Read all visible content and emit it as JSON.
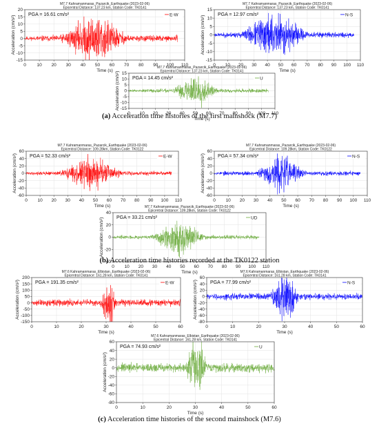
{
  "captions": [
    {
      "letter": "(a)",
      "text": "Acceleration time histories of the first mainshock (M7.7)"
    },
    {
      "letter": "(b)",
      "text": "Acceleration time histories recorded at the TK0122 station"
    },
    {
      "letter": "(c)",
      "text": "Acceleration time histories of the second mainshock (M7.6)"
    }
  ],
  "chart_data": [
    {
      "id": "a1",
      "type": "line",
      "title": "M7.7 Kahramanmaras_Pazarcik_Earthquake (2023-02-06)",
      "subtitle": "Epicentral Distance: 137.23 km, Station Code: TK0141",
      "xlabel": "Time (s)",
      "ylabel": "Acceleration (cm/s²)",
      "pga": "PGA = 16.61 cm/s²",
      "legend": "E-W",
      "legend_position": "top-right",
      "color": "#ff0000",
      "xlim": [
        0,
        110
      ],
      "ylim": [
        -15,
        20
      ],
      "xticks": [
        0,
        10,
        20,
        30,
        40,
        50,
        60,
        70,
        80,
        90,
        100,
        110
      ],
      "yticks": [
        -15,
        -10,
        -5,
        0,
        5,
        10,
        15,
        20
      ],
      "grid": true,
      "duration": 105,
      "peak": 16.61,
      "center": 48,
      "spread": 17,
      "onset": 8,
      "seed": 11
    },
    {
      "id": "a2",
      "type": "line",
      "title": "M7.7 Kahramanmaras_Pazarcik_Earthquake (2023-02-06)",
      "subtitle": "Epicentral Distance: 137.23 km, Station Code: TK0141",
      "xlabel": "Time (s)",
      "ylabel": "Acceleration (cm/s²)",
      "pga": "PGA = 12.97 cm/s²",
      "legend": "N-S",
      "legend_position": "top-right",
      "color": "#0000ff",
      "xlim": [
        0,
        110
      ],
      "ylim": [
        -15,
        15
      ],
      "xticks": [
        0,
        10,
        20,
        30,
        40,
        50,
        60,
        70,
        80,
        90,
        100,
        110
      ],
      "yticks": [
        -15,
        -10,
        -5,
        0,
        5,
        10,
        15
      ],
      "grid": true,
      "duration": 105,
      "peak": 12.97,
      "center": 45,
      "spread": 18,
      "onset": 8,
      "seed": 23
    },
    {
      "id": "a3",
      "type": "line",
      "title": "M7.7 Kahramanmaras_Pazarcik_Earthquake (2023-02-06)",
      "subtitle": "Epicentral Distance: 137.23 km, Station Code: TK0141",
      "xlabel": "Time (s)",
      "ylabel": "Acceleration (cm/s²)",
      "pga": "PGA = 14.45 cm/s²",
      "legend": "U",
      "legend_position": "top-right",
      "color": "#6aaa3a",
      "xlim": [
        0,
        110
      ],
      "ylim": [
        -15,
        15
      ],
      "xticks": [
        0,
        10,
        20,
        30,
        40,
        50,
        60,
        70,
        80,
        90,
        100,
        110
      ],
      "yticks": [
        -15,
        -10,
        -5,
        0,
        5,
        10,
        15
      ],
      "grid": true,
      "duration": 105,
      "peak": 14.45,
      "center": 50,
      "spread": 12,
      "onset": 10,
      "seed": 37
    },
    {
      "id": "b1",
      "type": "line",
      "title": "M7.7 Kahramanmaras_Pazarcik_Earthquake (2023-02-06)",
      "subtitle": "Epicentral Distance: 109.28km, Station Code: TK0122",
      "xlabel": "Time (s)",
      "ylabel": "Acceleration (cm/s²)",
      "pga": "PGA = 52.33 cm/s²",
      "legend": "E-W",
      "legend_position": "top-right",
      "color": "#ff0000",
      "xlim": [
        0,
        110
      ],
      "ylim": [
        -60,
        60
      ],
      "xticks": [
        0,
        10,
        20,
        30,
        40,
        50,
        60,
        70,
        80,
        90,
        100,
        110
      ],
      "yticks": [
        -60,
        -40,
        -20,
        0,
        20,
        40,
        60
      ],
      "grid": true,
      "duration": 105,
      "peak": 52.33,
      "center": 47,
      "spread": 16,
      "onset": 5,
      "seed": 41
    },
    {
      "id": "b2",
      "type": "line",
      "title": "M7.7 Kahramanmaras_Pazarcik_Earthquake (2023-02-06)",
      "subtitle": "Epicentral Distance: 109.28km, Station Code: TK0122",
      "xlabel": "Time (s)",
      "ylabel": "Acceleration (cm/s²)",
      "pga": "PGA = 57.34 cm/s²",
      "legend": "N-S",
      "legend_position": "top-right",
      "color": "#0000ff",
      "xlim": [
        0,
        110
      ],
      "ylim": [
        -60,
        60
      ],
      "xticks": [
        0,
        10,
        20,
        30,
        40,
        50,
        60,
        70,
        80,
        90,
        100,
        110
      ],
      "yticks": [
        -60,
        -40,
        -20,
        0,
        20,
        40,
        60
      ],
      "grid": true,
      "duration": 105,
      "peak": 57.34,
      "center": 48,
      "spread": 13,
      "onset": 5,
      "seed": 53
    },
    {
      "id": "b3",
      "type": "line",
      "title": "M7.7 Kahramanmaras_Pazarcik_Earthquake (2023-02-06)",
      "subtitle": "Epicentral Distance: 109.28km, Station Code: TK0122",
      "xlabel": "Time (s)",
      "ylabel": "Acceleration (cm/s²)",
      "pga": "PGA = 33.21 cm/s²",
      "legend": "UD",
      "legend_position": "top-right",
      "color": "#6aaa3a",
      "xlim": [
        0,
        110
      ],
      "ylim": [
        -40,
        40
      ],
      "xticks": [
        0,
        10,
        20,
        30,
        40,
        50,
        60,
        70,
        80,
        90,
        100,
        110
      ],
      "yticks": [
        -40,
        -20,
        0,
        20,
        40
      ],
      "grid": true,
      "duration": 105,
      "peak": 33.21,
      "center": 48,
      "spread": 14,
      "onset": 5,
      "seed": 67
    },
    {
      "id": "c1",
      "type": "line",
      "title": "M7.6 Kahramanmaras_Elbistan_Earthquake (2023-02-06)",
      "subtitle": "Epicentral Distance: 161.28 km, Station Code: TK0141",
      "xlabel": "Time (s)",
      "ylabel": "Acceleration (cm/s²)",
      "pga": "PGA = 191.35 cm/s²",
      "legend": "E-W",
      "legend_position": "top-right",
      "color": "#ff0000",
      "xlim": [
        0,
        60
      ],
      "ylim": [
        -150,
        200
      ],
      "xticks": [
        0,
        10,
        20,
        30,
        40,
        50,
        60
      ],
      "yticks": [
        -150,
        -100,
        -50,
        0,
        50,
        100,
        150,
        200
      ],
      "grid": true,
      "duration": 60,
      "peak": 191.35,
      "center": 31,
      "spread": 2.2,
      "onset": 2,
      "seed": 71
    },
    {
      "id": "c2",
      "type": "line",
      "title": "M7.6 Kahramanmaras_Elbistan_Earthquake (2023-02-06)",
      "subtitle": "Epicentral Distance: 161.28 km, Station Code: TK0141",
      "xlabel": "Time (s)",
      "ylabel": "Acceleration (cm/s²)",
      "pga": "PGA = 77.99 cm/s²",
      "legend": "N-S",
      "legend_position": "top-right",
      "color": "#0000ff",
      "xlim": [
        0,
        60
      ],
      "ylim": [
        -80,
        60
      ],
      "xticks": [
        0,
        10,
        20,
        30,
        40,
        50,
        60
      ],
      "yticks": [
        -80,
        -60,
        -40,
        -20,
        0,
        20,
        40,
        60
      ],
      "grid": true,
      "duration": 60,
      "peak": 77.99,
      "center": 30,
      "spread": 4,
      "onset": 2,
      "seed": 83
    },
    {
      "id": "c3",
      "type": "line",
      "title": "M7.6 Kahramanmaras_Elbistan_Earthquake (2023-02-06)",
      "subtitle": "Epicentral Distance: 161.28 km, Station Code: TK0141",
      "xlabel": "Time (s)",
      "ylabel": "Acceleration (cm/s²)",
      "pga": "PGA = 74.93 cm/s²",
      "legend": "U",
      "legend_position": "top-right",
      "color": "#6aaa3a",
      "xlim": [
        0,
        60
      ],
      "ylim": [
        -80,
        60
      ],
      "xticks": [
        0,
        10,
        20,
        30,
        40,
        50,
        60
      ],
      "yticks": [
        -80,
        -60,
        -40,
        -20,
        0,
        20,
        40,
        60
      ],
      "grid": true,
      "duration": 60,
      "peak": 74.93,
      "center": 30.5,
      "spread": 3,
      "onset": 2,
      "seed": 97
    }
  ]
}
